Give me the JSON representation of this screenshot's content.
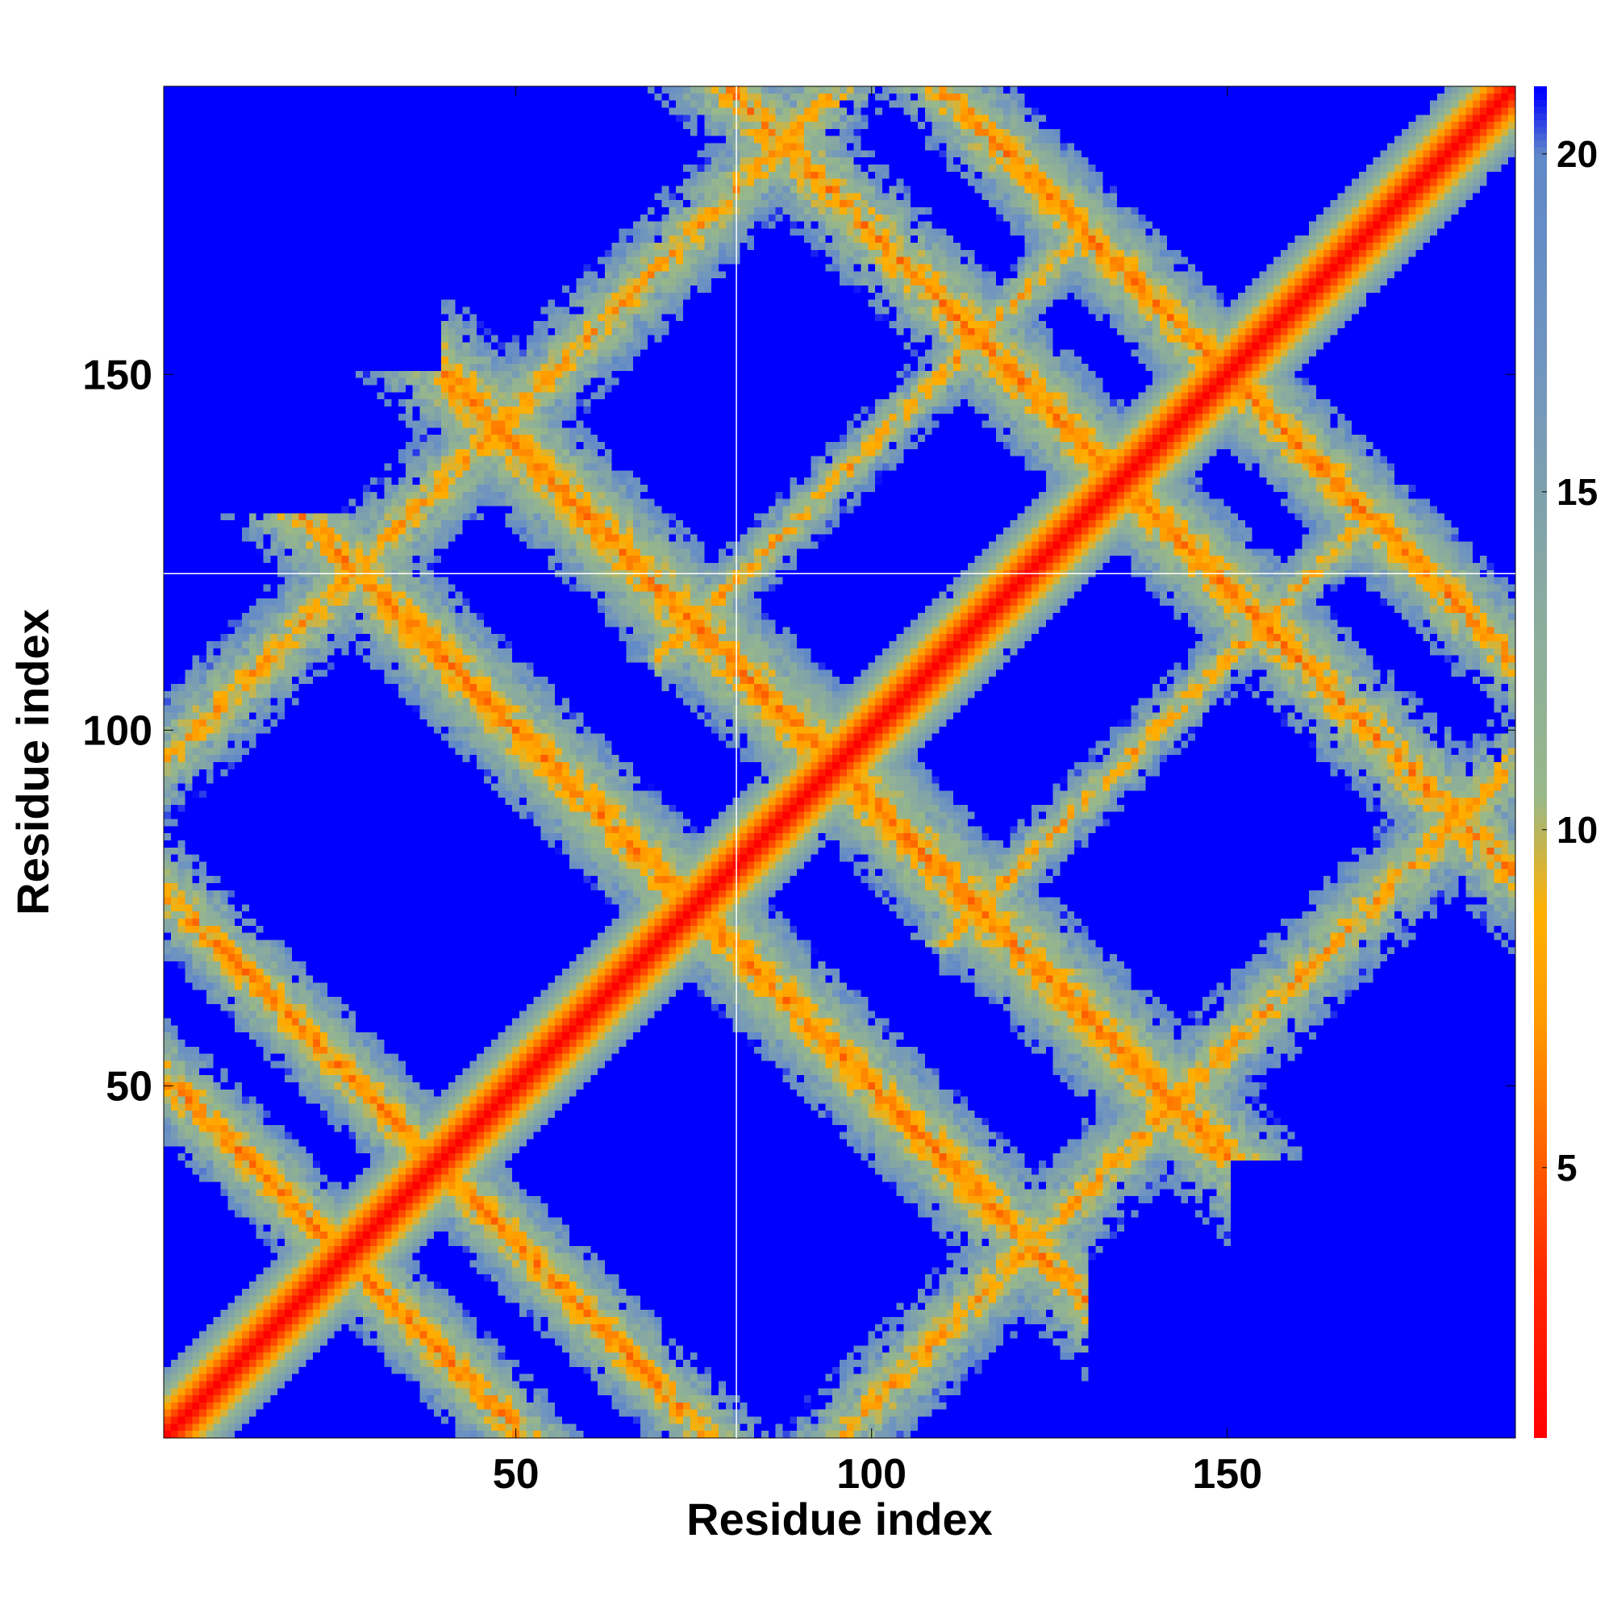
{
  "chart_data": {
    "type": "heatmap",
    "title": "",
    "xlabel": "Residue index",
    "ylabel": "Residue index",
    "xlim": [
      1,
      190
    ],
    "ylim": [
      1,
      190
    ],
    "n_residues": 190,
    "x_ticks": [
      {
        "value": 50,
        "label": "50"
      },
      {
        "value": 100,
        "label": "100"
      },
      {
        "value": 150,
        "label": "150"
      }
    ],
    "y_ticks": [
      {
        "value": 50,
        "label": "50"
      },
      {
        "value": 100,
        "label": "100"
      },
      {
        "value": 150,
        "label": "150"
      }
    ],
    "colorbar": {
      "range": [
        1,
        21
      ],
      "ticks": [
        {
          "value": 5,
          "label": "5"
        },
        {
          "value": 10,
          "label": "10"
        },
        {
          "value": 15,
          "label": "15"
        },
        {
          "value": 20,
          "label": "20"
        }
      ],
      "colors": [
        "#ff0000",
        "#ff4000",
        "#ff8000",
        "#ffa500",
        "#8fbc8f",
        "#6b9ac4",
        "#0000ff"
      ]
    },
    "features": {
      "main_diagonal": "distance ~1-4 on diagonal, rising to ~15 at 8 residues off",
      "anti_diagonal_bands": [
        {
          "sum_centers": [
            52,
            80
          ],
          "range_x": [
            1,
            60
          ]
        },
        {
          "sum_centers": [
            150,
            192
          ],
          "range_x": [
            40,
            140
          ]
        },
        {
          "sum_centers": [
            270,
            300
          ],
          "range_x": [
            120,
            190
          ]
        }
      ],
      "parallel_bands": [
        {
          "offset": -95,
          "range_x": [
            100,
            190
          ]
        },
        {
          "offset": 95,
          "range_x": [
            1,
            90
          ]
        }
      ],
      "saturated_value": 21
    },
    "reference_lines": {
      "vertical_x": 81,
      "horizontal_y": 122
    }
  }
}
